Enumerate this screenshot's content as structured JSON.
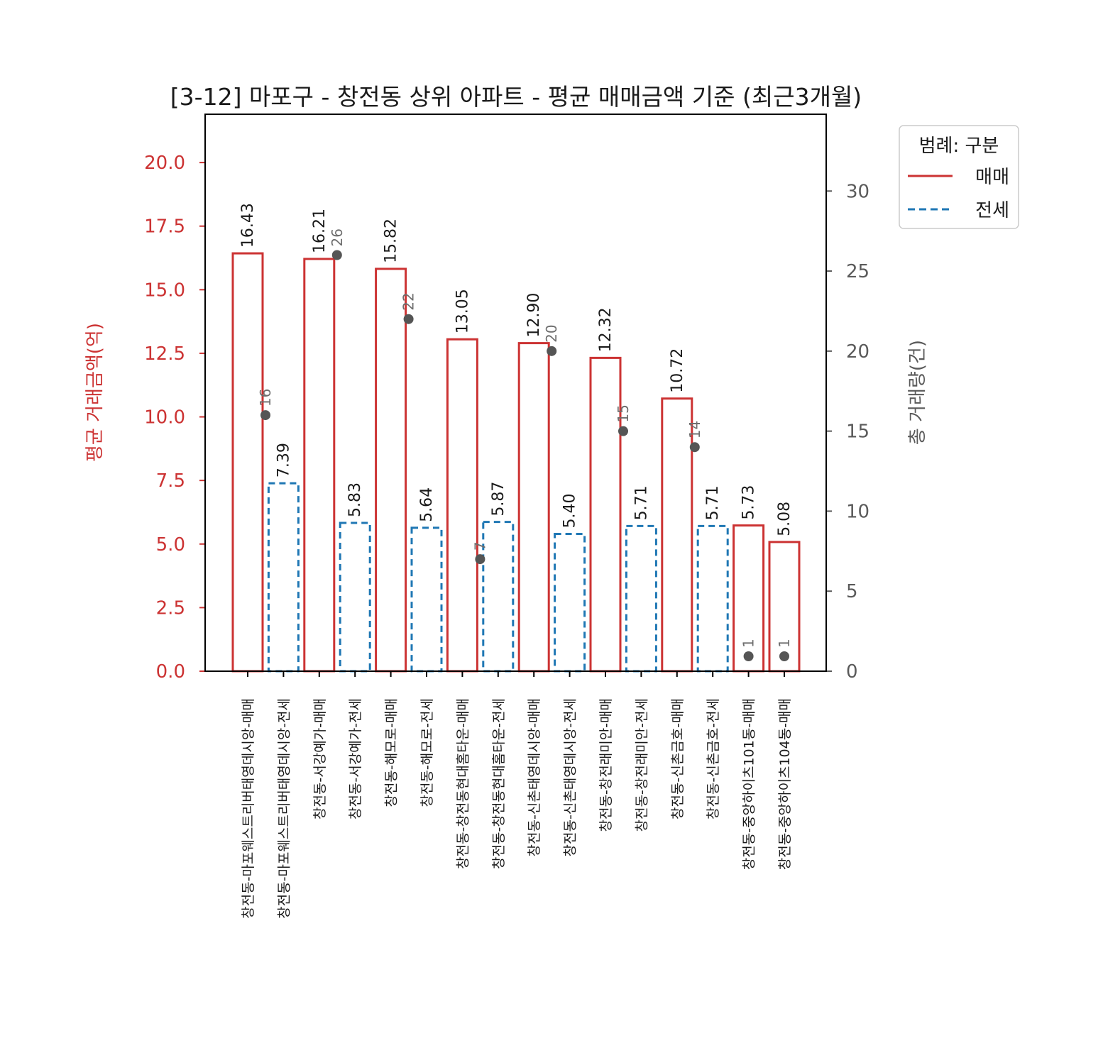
{
  "chart_data": {
    "type": "bar",
    "title": "[3-12] 마포구 - 창전동 상위 아파트 - 평균 매매금액 기준 (최근3개월)",
    "xlabel": "",
    "ylabel": "평균 거래금액(억)",
    "ylabel_right": "총 거래량(건)",
    "ylim": [
      0,
      21.9
    ],
    "ylim_right": [
      0,
      34.8
    ],
    "yticks": [
      "0.0",
      "2.5",
      "5.0",
      "7.5",
      "10.0",
      "12.5",
      "15.0",
      "17.5",
      "20.0"
    ],
    "yticks_right": [
      "0",
      "5",
      "10",
      "15",
      "20",
      "25",
      "30"
    ],
    "grid": false,
    "legend": {
      "title": "범례: 구분",
      "position": "upper right outside",
      "entries": [
        {
          "label": "매매",
          "color": "#cc3333",
          "style": "solid"
        },
        {
          "label": "전세",
          "color": "#1f77b4",
          "style": "dashed"
        }
      ]
    },
    "categories": [
      "창전동-마포웨스트리버태영데시앙-매매",
      "창전동-마포웨스트리버태영데시앙-전세",
      "창전동-서강예가-매매",
      "창전동-서강예가-전세",
      "창전동-해모로-매매",
      "창전동-해모로-전세",
      "창전동-창전동현대홈타운-매매",
      "창전동-창전동현대홈타운-전세",
      "창전동-신촌태영데시앙-매매",
      "창전동-신촌태영데시앙-전세",
      "창전동-창전래미안-매매",
      "창전동-창전래미안-전세",
      "창전동-신촌금호-매매",
      "창전동-신촌금호-전세",
      "창전동-중앙하이츠101동-매매",
      "창전동-중앙하이츠104동-매매"
    ],
    "kinds": [
      "매매",
      "전세",
      "매매",
      "전세",
      "매매",
      "전세",
      "매매",
      "전세",
      "매매",
      "전세",
      "매매",
      "전세",
      "매매",
      "전세",
      "매매",
      "매매"
    ],
    "series": [
      {
        "name": "평균 거래금액(억)",
        "axis": "left",
        "values": [
          16.43,
          7.39,
          16.21,
          5.83,
          15.82,
          5.64,
          13.05,
          5.87,
          12.9,
          5.4,
          12.32,
          5.71,
          10.72,
          5.71,
          5.73,
          5.08
        ],
        "labels": [
          "16.43",
          "7.39",
          "16.21",
          "5.83",
          "15.82",
          "5.64",
          "13.05",
          "5.87",
          "12.90",
          "5.40",
          "12.32",
          "5.71",
          "10.72",
          "5.71",
          "5.73",
          "5.08"
        ]
      },
      {
        "name": "총 거래량(건)",
        "axis": "right",
        "marker": "dot",
        "points": [
          {
            "index": 0,
            "value": 16
          },
          {
            "index": 2,
            "value": 26
          },
          {
            "index": 4,
            "value": 22
          },
          {
            "index": 6,
            "value": 7
          },
          {
            "index": 8,
            "value": 20
          },
          {
            "index": 10,
            "value": 15
          },
          {
            "index": 12,
            "value": 14
          },
          {
            "index": 14,
            "value": 1
          },
          {
            "index": 15,
            "value": 1
          }
        ]
      }
    ],
    "colors": {
      "매매": "#cc3333",
      "전세": "#1f77b4",
      "count_dot": "#555555",
      "count_text": "#6e6e6e"
    }
  }
}
